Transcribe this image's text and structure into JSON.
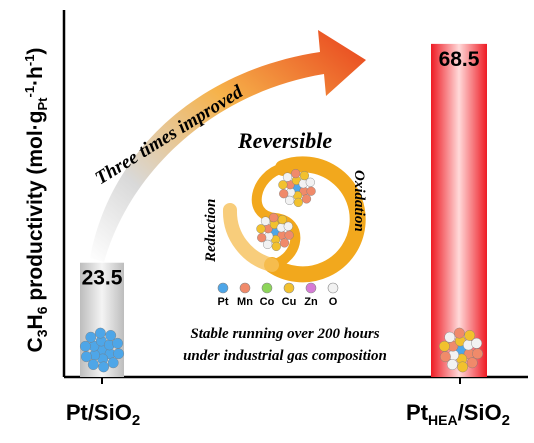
{
  "chart_data": {
    "type": "bar",
    "categories": [
      "Pt/SiO2",
      "PtHEA/SiO2"
    ],
    "values": [
      23.5,
      68.5
    ],
    "ylabel": "C3H6 productivity (mol·gPt-1·h-1)",
    "xlabel": "",
    "ylim": [
      0,
      73
    ],
    "grid": false,
    "colors": [
      "#c8c8c8",
      "#ee1b24"
    ],
    "bar_labels": [
      "23.5",
      "68.5"
    ]
  },
  "annotations": {
    "arrow_text": "Three times improved",
    "reversible": "Reversible",
    "reduction": "Reduction",
    "oxidation": "Oxidation",
    "stable_line1": "Stable running over 200 hours",
    "stable_line2": "under industrial gas composition"
  },
  "legend": [
    {
      "label": "Pt",
      "color": "#4ea6e8"
    },
    {
      "label": "Mn",
      "color": "#f08a6a"
    },
    {
      "label": "Co",
      "color": "#8dd55a"
    },
    {
      "label": "Cu",
      "color": "#f2c12e"
    },
    {
      "label": "Zn",
      "color": "#d67bd6"
    },
    {
      "label": "O",
      "color": "#f2f2f2"
    }
  ]
}
